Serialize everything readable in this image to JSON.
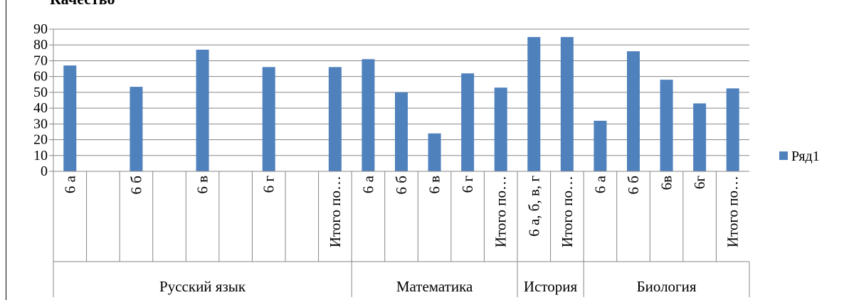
{
  "title": "Качество",
  "chart_data": {
    "type": "bar",
    "ylim": [
      0,
      90
    ],
    "yticks": [
      0,
      10,
      20,
      30,
      40,
      50,
      60,
      70,
      80,
      90
    ],
    "grid": true,
    "legend_position": "right",
    "series": [
      {
        "name": "Ряд1",
        "color": "#4f81bd"
      }
    ],
    "slots": [
      {
        "label": "6 а",
        "value": 67
      },
      {
        "label": "",
        "value": null
      },
      {
        "label": "6 б",
        "value": 53.5
      },
      {
        "label": "",
        "value": null
      },
      {
        "label": "6 в",
        "value": 77
      },
      {
        "label": "",
        "value": null
      },
      {
        "label": "6 г",
        "value": 66
      },
      {
        "label": "",
        "value": null
      },
      {
        "label": "Итого по…",
        "value": 66
      },
      {
        "label": "6 а",
        "value": 71
      },
      {
        "label": "6 б",
        "value": 50
      },
      {
        "label": "6 в",
        "value": 24
      },
      {
        "label": "6 г",
        "value": 62
      },
      {
        "label": "Итого по…",
        "value": 53
      },
      {
        "label": "6 а, б, в, г",
        "value": 85
      },
      {
        "label": "Итого по…",
        "value": 85
      },
      {
        "label": "6 а",
        "value": 32
      },
      {
        "label": "6 б",
        "value": 76
      },
      {
        "label": "6в",
        "value": 58
      },
      {
        "label": "6г",
        "value": 43
      },
      {
        "label": "Итого по…",
        "value": 52.5
      }
    ],
    "groups": [
      {
        "label": "Русский язык",
        "count": 9
      },
      {
        "label": "Математика",
        "count": 5
      },
      {
        "label": "История",
        "count": 2
      },
      {
        "label": "Биология",
        "count": 5
      }
    ]
  }
}
